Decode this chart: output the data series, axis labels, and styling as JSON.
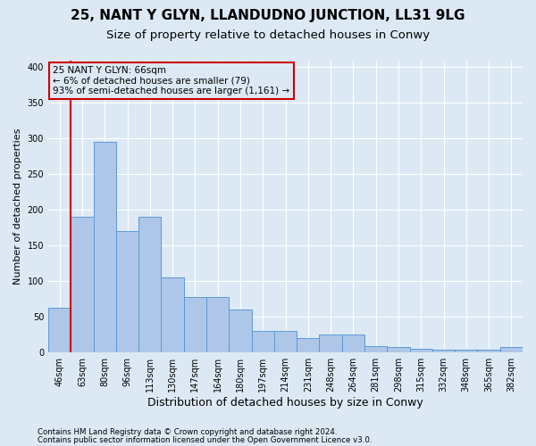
{
  "title1": "25, NANT Y GLYN, LLANDUDNO JUNCTION, LL31 9LG",
  "title2": "Size of property relative to detached houses in Conwy",
  "xlabel": "Distribution of detached houses by size in Conwy",
  "ylabel": "Number of detached properties",
  "footer1": "Contains HM Land Registry data © Crown copyright and database right 2024.",
  "footer2": "Contains public sector information licensed under the Open Government Licence v3.0.",
  "annotation_title": "25 NANT Y GLYN: 66sqm",
  "annotation_line1": "← 6% of detached houses are smaller (79)",
  "annotation_line2": "93% of semi-detached houses are larger (1,161) →",
  "bar_categories": [
    "46sqm",
    "63sqm",
    "80sqm",
    "96sqm",
    "113sqm",
    "130sqm",
    "147sqm",
    "164sqm",
    "180sqm",
    "197sqm",
    "214sqm",
    "231sqm",
    "248sqm",
    "264sqm",
    "281sqm",
    "298sqm",
    "315sqm",
    "332sqm",
    "348sqm",
    "365sqm",
    "382sqm"
  ],
  "bar_values": [
    63,
    190,
    295,
    170,
    190,
    105,
    78,
    78,
    60,
    30,
    30,
    20,
    25,
    25,
    9,
    7,
    5,
    4,
    4,
    3,
    7
  ],
  "bar_color": "#aec6e8",
  "bar_edge_color": "#5b9bd5",
  "vline_color": "#cc0000",
  "vline_x": 0.5,
  "annotation_box_edge_color": "#cc0000",
  "ylim": [
    0,
    410
  ],
  "yticks": [
    0,
    50,
    100,
    150,
    200,
    250,
    300,
    350,
    400
  ],
  "background_color": "#dce9f5",
  "grid_color": "#ffffff",
  "title1_fontsize": 11,
  "title2_fontsize": 9.5,
  "xlabel_fontsize": 9,
  "ylabel_fontsize": 8,
  "annotation_fontsize": 7.5,
  "tick_fontsize": 7
}
